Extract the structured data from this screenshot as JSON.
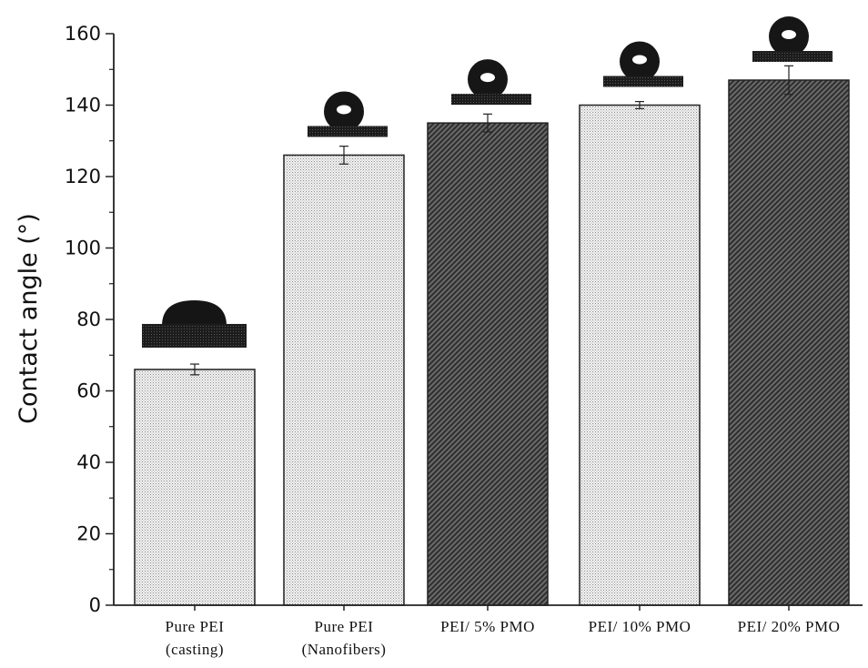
{
  "chart_data": {
    "type": "bar",
    "title": "",
    "xlabel": "",
    "ylabel": "Contact angle (°)",
    "ylim": [
      0,
      160
    ],
    "yticks": [
      0,
      20,
      40,
      60,
      80,
      100,
      120,
      140,
      160
    ],
    "grid": false,
    "legend": "none",
    "categories": [
      [
        "Pure PEI",
        "(casting)"
      ],
      [
        "Pure PEI",
        "(Nanofibers)"
      ],
      [
        "PEI/ 5% PMO"
      ],
      [
        "PEI/ 10% PMO"
      ],
      [
        "PEI/ 20% PMO"
      ]
    ],
    "values": [
      66,
      126,
      135,
      140,
      147
    ],
    "errors": [
      1.5,
      2.5,
      2.5,
      1.0,
      4.0
    ],
    "fills": [
      "light-dotted",
      "light-dotted",
      "dark-hatched",
      "light-dotted",
      "dark-hatched"
    ],
    "droplet_icons": [
      "flat-drop",
      "round-drop",
      "round-drop",
      "round-drop",
      "round-drop"
    ],
    "colors": {
      "light_fill": "#d8d8d8",
      "dark_fill": "#4a4a4a",
      "axis": "#111111",
      "droplet": "#1a1a1a"
    }
  }
}
